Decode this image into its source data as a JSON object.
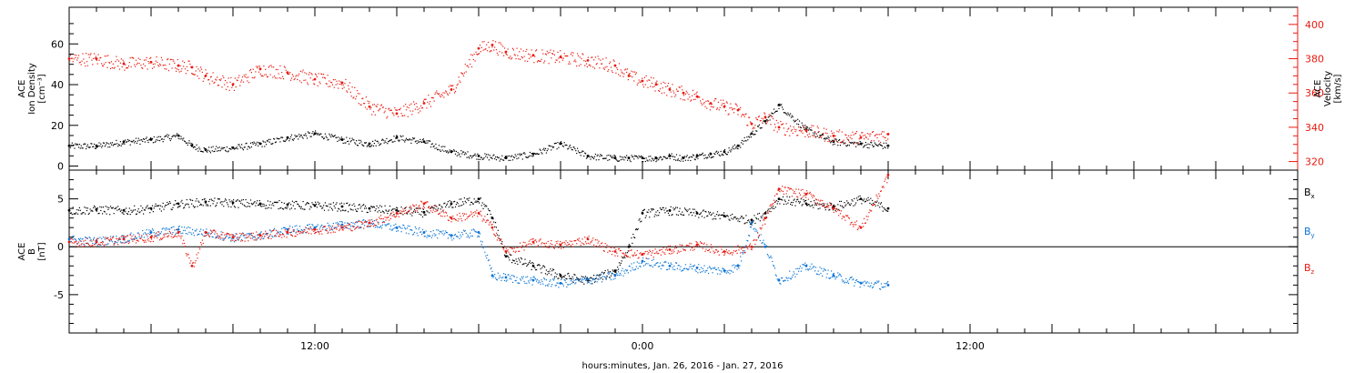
{
  "colors": {
    "black": "#000000",
    "red": "#e8190f",
    "blue": "#0a74d4"
  },
  "x_axis": {
    "label": "hours:minutes, Jan. 26, 2016 - Jan. 27, 2016",
    "range_hours": [
      3,
      48
    ],
    "tick_labels": [
      {
        "hour": 12,
        "text": "12:00"
      },
      {
        "hour": 24,
        "text": "0:00"
      },
      {
        "hour": 36,
        "text": "12:00"
      }
    ]
  },
  "chart_data": [
    {
      "type": "scatter",
      "panel": "top",
      "left_axis_label": [
        "ACE",
        "Ion Density",
        "[cm⁻³]"
      ],
      "right_axis_label": [
        "ACE",
        "Velocity",
        "[km/s]"
      ],
      "ylim_left": [
        -2,
        78
      ],
      "ylim_right": [
        315,
        410
      ],
      "left_ticks": [
        0,
        20,
        40,
        60
      ],
      "right_ticks": [
        320,
        340,
        360,
        380,
        400
      ],
      "series": [
        {
          "axis": "left",
          "color": "black",
          "x": [
            3.0,
            4.0,
            5.0,
            6.0,
            7.0,
            7.5,
            8.0,
            9.0,
            10.0,
            11.0,
            12.0,
            13.0,
            14.0,
            15.0,
            16.0,
            17.0,
            18.0,
            19.0,
            20.0,
            21.0,
            22.0,
            23.0,
            23.5,
            24.0,
            24.5,
            25.0,
            25.5,
            26.0,
            26.5,
            27.0,
            27.5,
            28.0,
            28.5,
            29.0,
            30.0,
            31.0,
            32.0,
            33.0
          ],
          "y": [
            10,
            10,
            12,
            13,
            15,
            10,
            8,
            9,
            11,
            14,
            16,
            13,
            11,
            14,
            12,
            7,
            5,
            4,
            6,
            11,
            5,
            4,
            4,
            4,
            4,
            5,
            4,
            5,
            6,
            7,
            10,
            16,
            22,
            30,
            18,
            12,
            11,
            10
          ]
        },
        {
          "axis": "right",
          "color": "red",
          "x": [
            3.0,
            4.0,
            5.0,
            6.0,
            7.0,
            7.5,
            8.0,
            9.0,
            10.0,
            11.0,
            12.0,
            13.0,
            14.0,
            15.0,
            16.0,
            17.0,
            18.0,
            18.5,
            19.0,
            20.0,
            21.0,
            22.0,
            23.0,
            23.5,
            24.0,
            24.5,
            25.0,
            25.5,
            26.0,
            26.5,
            27.0,
            27.5,
            28.0,
            28.5,
            29.0,
            30.0,
            31.0,
            32.0,
            33.0
          ],
          "y": [
            380,
            380,
            377,
            378,
            376,
            375,
            370,
            365,
            374,
            372,
            368,
            366,
            352,
            348,
            354,
            362,
            386,
            388,
            384,
            382,
            381,
            379,
            376,
            370,
            367,
            365,
            362,
            360,
            358,
            354,
            352,
            350,
            342,
            346,
            340,
            338,
            335,
            334,
            336
          ]
        }
      ]
    },
    {
      "type": "scatter",
      "panel": "bottom",
      "left_axis_label": [
        "ACE",
        "B",
        "[nT]"
      ],
      "ylim": [
        -9,
        8
      ],
      "left_ticks": [
        -5,
        0,
        5
      ],
      "zero_line": true,
      "series": [
        {
          "name": "Bx",
          "color": "black",
          "x": [
            3.0,
            4.0,
            5.0,
            6.0,
            7.0,
            8.0,
            9.0,
            10.0,
            11.0,
            12.0,
            13.0,
            14.0,
            15.0,
            16.0,
            17.0,
            18.0,
            18.5,
            19.0,
            20.0,
            21.0,
            22.0,
            23.0,
            23.5,
            24.0,
            25.0,
            26.0,
            27.0,
            28.0,
            28.5,
            29.0,
            30.0,
            31.0,
            32.0,
            33.0
          ],
          "y": [
            3.8,
            3.9,
            3.8,
            4.0,
            4.5,
            4.7,
            4.6,
            4.5,
            4.4,
            4.3,
            4.2,
            4.0,
            3.8,
            3.6,
            4.5,
            5.0,
            3.0,
            -1.0,
            -2.0,
            -3.0,
            -3.5,
            -2.5,
            0,
            3.5,
            3.8,
            3.5,
            3.2,
            2.8,
            3.5,
            5.0,
            4.5,
            4.2,
            5.0,
            4.0
          ]
        },
        {
          "name": "By",
          "color": "blue",
          "x": [
            3.0,
            4.0,
            5.0,
            6.0,
            7.0,
            8.0,
            9.0,
            10.0,
            11.0,
            12.0,
            13.0,
            14.0,
            15.0,
            16.0,
            17.0,
            18.0,
            18.5,
            19.0,
            20.0,
            21.0,
            22.0,
            23.0,
            24.0,
            25.0,
            26.0,
            27.0,
            27.5,
            28.0,
            28.5,
            29.0,
            30.0,
            31.0,
            32.0,
            33.0
          ],
          "y": [
            0.8,
            0.6,
            0.9,
            1.5,
            1.8,
            1.5,
            1.0,
            1.2,
            1.8,
            2.0,
            2.3,
            2.5,
            2.0,
            1.5,
            1.2,
            1.5,
            -3.0,
            -3.2,
            -3.5,
            -3.8,
            -3.4,
            -3.0,
            -1.5,
            -2.0,
            -2.2,
            -2.5,
            -2.0,
            2.5,
            0,
            -3.5,
            -2.0,
            -3.0,
            -3.8,
            -4.0
          ]
        },
        {
          "name": "Bz",
          "color": "red",
          "x": [
            3.0,
            4.0,
            5.0,
            6.0,
            7.0,
            7.5,
            8.0,
            9.0,
            10.0,
            11.0,
            12.0,
            13.0,
            14.0,
            15.0,
            16.0,
            17.0,
            18.0,
            18.5,
            19.0,
            20.0,
            21.0,
            22.0,
            23.0,
            24.0,
            25.0,
            26.0,
            27.0,
            28.0,
            28.5,
            29.0,
            30.0,
            31.0,
            32.0,
            33.0
          ],
          "y": [
            0.5,
            0.5,
            0.8,
            1.0,
            1.5,
            -2.0,
            1.5,
            1.0,
            1.2,
            1.5,
            1.8,
            2.0,
            2.5,
            3.5,
            4.5,
            3.0,
            3.5,
            2.0,
            -0.5,
            0.5,
            0.2,
            0.8,
            -0.5,
            -0.8,
            -0.3,
            0.2,
            -0.5,
            0.0,
            3.0,
            6.0,
            5.5,
            4.0,
            2.0,
            7.5
          ]
        }
      ],
      "legend": [
        {
          "text": "B",
          "sub": "x",
          "color": "black"
        },
        {
          "text": "B",
          "sub": "y",
          "color": "blue"
        },
        {
          "text": "B",
          "sub": "z",
          "color": "red"
        }
      ]
    }
  ]
}
